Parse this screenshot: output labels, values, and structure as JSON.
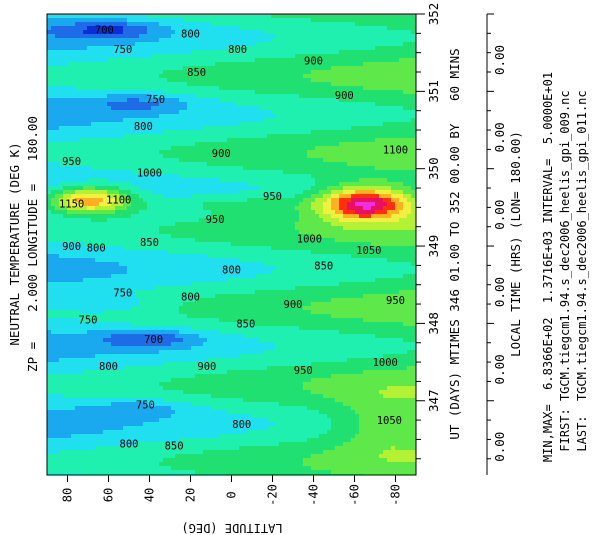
{
  "colors": {
    "levels": [
      "#0a2fd6",
      "#1f6ae6",
      "#1aa8ee",
      "#20e0f0",
      "#1ff0b0",
      "#1fe070",
      "#5fe84a",
      "#b4f034",
      "#f0f040",
      "#ffb020",
      "#ff3010",
      "#e81060",
      "#f030e0"
    ]
  },
  "chart_data": {
    "type": "heatmap",
    "title": "NEUTRAL TEMPERATURE (DEG K)",
    "subtitle": "ZP =    2.000 LONGITUDE =   180.00",
    "xlabel": "LATITUDE (DEG)",
    "ylabel": "UT (DAYS) MTIMES 346 01.00 TO 352 00.00 BY   60 MINS",
    "y2label": "LOCAL TIME (HRS) (LON= 180.00)",
    "stats_lines": [
      "MIN,MAX=  6.8366E+02  1.3716E+03 INTERVAL=  5.0000E+01",
      "FIRST: TGCM.tiegcm1.94.s_dec2006_heelis_gpi_009.nc",
      "LAST:  TGCM.tiegcm1.94.s_dec2006_heelis_gpi_011.nc"
    ],
    "x_ticks": [
      "80",
      "60",
      "40",
      "20",
      "0",
      "-20",
      "-40",
      "-60",
      "-80"
    ],
    "x_tick_values": [
      80,
      60,
      40,
      20,
      0,
      -20,
      -40,
      -60,
      -80
    ],
    "xlim": [
      90,
      -90
    ],
    "y_ticks": [
      "347",
      "348",
      "349",
      "350",
      "351",
      "352"
    ],
    "y_tick_values": [
      347,
      348,
      349,
      350,
      351,
      352
    ],
    "ylim": [
      346.04,
      352.0
    ],
    "y2_ticks": [
      "0.00",
      "0.00",
      "0.00",
      "0.00",
      "0.00",
      "0.00"
    ],
    "contour_interval": 50,
    "vmin": 683.66,
    "vmax": 1371.6,
    "levels": [
      700,
      750,
      800,
      850,
      900,
      950,
      1000,
      1050,
      1100,
      1150,
      1200,
      1250,
      1300
    ],
    "contour_labels": [
      {
        "text": "700",
        "lat": 62,
        "ut": 351.8
      },
      {
        "text": "800",
        "lat": 20,
        "ut": 351.75
      },
      {
        "text": "750",
        "lat": 53,
        "ut": 351.55
      },
      {
        "text": "800",
        "lat": -3,
        "ut": 351.55
      },
      {
        "text": "900",
        "lat": -40,
        "ut": 351.4
      },
      {
        "text": "850",
        "lat": 17,
        "ut": 351.25
      },
      {
        "text": "750",
        "lat": 37,
        "ut": 350.9
      },
      {
        "text": "900",
        "lat": -55,
        "ut": 350.95
      },
      {
        "text": "800",
        "lat": 43,
        "ut": 350.55
      },
      {
        "text": "950",
        "lat": 78,
        "ut": 350.1
      },
      {
        "text": "1000",
        "lat": 40,
        "ut": 349.95
      },
      {
        "text": "900",
        "lat": 5,
        "ut": 350.2
      },
      {
        "text": "1100",
        "lat": -80,
        "ut": 350.25
      },
      {
        "text": "1150",
        "lat": 78,
        "ut": 349.55
      },
      {
        "text": "1100",
        "lat": 55,
        "ut": 349.6
      },
      {
        "text": "950",
        "lat": -20,
        "ut": 349.65
      },
      {
        "text": "950",
        "lat": 8,
        "ut": 349.35
      },
      {
        "text": "1000",
        "lat": -38,
        "ut": 349.1
      },
      {
        "text": "1050",
        "lat": -67,
        "ut": 348.95
      },
      {
        "text": "900",
        "lat": 78,
        "ut": 349.0
      },
      {
        "text": "800",
        "lat": 66,
        "ut": 348.98
      },
      {
        "text": "850",
        "lat": 40,
        "ut": 349.05
      },
      {
        "text": "800",
        "lat": 0,
        "ut": 348.7
      },
      {
        "text": "850",
        "lat": -45,
        "ut": 348.75
      },
      {
        "text": "750",
        "lat": 53,
        "ut": 348.4
      },
      {
        "text": "800",
        "lat": 20,
        "ut": 348.35
      },
      {
        "text": "900",
        "lat": -30,
        "ut": 348.25
      },
      {
        "text": "950",
        "lat": -80,
        "ut": 348.3
      },
      {
        "text": "750",
        "lat": 70,
        "ut": 348.05
      },
      {
        "text": "850",
        "lat": -7,
        "ut": 348.0
      },
      {
        "text": "700",
        "lat": 38,
        "ut": 347.8
      },
      {
        "text": "800",
        "lat": 60,
        "ut": 347.45
      },
      {
        "text": "900",
        "lat": 12,
        "ut": 347.45
      },
      {
        "text": "950",
        "lat": -35,
        "ut": 347.4
      },
      {
        "text": "1000",
        "lat": -75,
        "ut": 347.5
      },
      {
        "text": "750",
        "lat": 42,
        "ut": 346.95
      },
      {
        "text": "800",
        "lat": -5,
        "ut": 346.7
      },
      {
        "text": "1050",
        "lat": -77,
        "ut": 346.75
      },
      {
        "text": "800",
        "lat": 50,
        "ut": 346.45
      },
      {
        "text": "850",
        "lat": 28,
        "ut": 346.42
      }
    ]
  }
}
